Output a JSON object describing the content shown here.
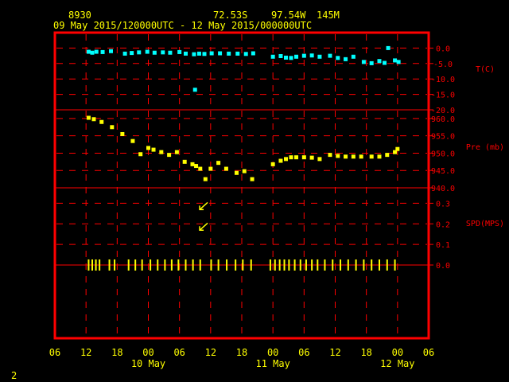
{
  "header": {
    "station_id": "8930",
    "lat": "72.53S",
    "lon": "97.54W",
    "elev": "145M",
    "time_range": "09 May 2015/120000UTC - 12 May 2015/000000UTC"
  },
  "footer": {
    "page_number": "2"
  },
  "colors": {
    "frame": "#ff0000",
    "axis_text": "#ff0000",
    "header_text": "#ffff00",
    "temperature": "#00ffff",
    "pressure": "#ffff00",
    "wind": "#ffff00"
  },
  "x_axis": {
    "tick_labels": [
      "06",
      "12",
      "18",
      "00",
      "06",
      "12",
      "18",
      "00",
      "06",
      "12",
      "18",
      "00",
      "06"
    ],
    "tick_hours": [
      -6,
      0,
      6,
      12,
      18,
      24,
      30,
      36,
      42,
      48,
      54,
      60,
      66
    ],
    "date_labels": [
      {
        "label": "10 May",
        "hour": 12
      },
      {
        "label": "11 May",
        "hour": 36
      },
      {
        "label": "12 May",
        "hour": 60
      }
    ],
    "range_hours": [
      -6,
      66
    ]
  },
  "chart_data": [
    {
      "type": "scatter",
      "ylabel": "T(C)",
      "units": "C",
      "ylim": [
        -20,
        5
      ],
      "tick_values": [
        0,
        -5,
        -10,
        -15,
        -20
      ],
      "tick_labels": [
        "0.0",
        "-5.0",
        "-10.0",
        "-15.0",
        "-20.0"
      ],
      "x_hours_since_start": [
        0.5,
        1.2,
        2,
        3.2,
        4.8,
        7.5,
        8.8,
        10.2,
        11.8,
        13.2,
        14.8,
        16.2,
        18,
        19.2,
        20.8,
        21.8,
        22.8,
        24.2,
        25.8,
        27.5,
        29.2,
        30.8,
        32.2,
        36,
        37.5,
        38.5,
        39.5,
        40.5,
        42,
        43.5,
        45,
        47,
        48.5,
        50,
        51.5,
        53.5,
        55,
        56.5,
        57.5,
        59.5,
        60.2,
        21,
        58.2
      ],
      "y": [
        -1.2,
        -1.5,
        -1.2,
        -1.3,
        -1,
        -1.8,
        -1.6,
        -1.4,
        -1.2,
        -1.5,
        -1.4,
        -1.5,
        -1.3,
        -1.8,
        -2,
        -1.8,
        -1.9,
        -1.7,
        -1.7,
        -1.8,
        -1.8,
        -1.9,
        -1.7,
        -2.8,
        -2.6,
        -3.1,
        -3.2,
        -2.8,
        -2.5,
        -2.4,
        -2.8,
        -2.5,
        -3.2,
        -3.6,
        -2.8,
        -4.5,
        -4.9,
        -4.2,
        -4.8,
        -4,
        -4.5,
        -13.5,
        0
      ],
      "marker": "square"
    },
    {
      "type": "scatter",
      "ylabel": "Pre (mb)",
      "units": "mb",
      "ylim": [
        940,
        962.5
      ],
      "tick_values": [
        960,
        955,
        950,
        945,
        940
      ],
      "tick_labels": [
        "960.0",
        "955.0",
        "950.0",
        "945.0",
        "940.0"
      ],
      "x_hours_since_start": [
        0.5,
        1.5,
        3,
        5,
        7,
        9,
        10.5,
        12,
        13,
        14.5,
        16,
        17.5,
        19,
        20.5,
        21.2,
        22,
        23,
        24,
        25.5,
        27,
        29,
        30.5,
        32,
        36,
        37.5,
        38.5,
        39.5,
        40.5,
        42,
        43.5,
        45,
        47,
        48.5,
        50,
        51.5,
        53,
        55,
        56.5,
        58,
        59.5,
        60
      ],
      "y": [
        960.2,
        959.8,
        959.0,
        957.5,
        955.5,
        953.5,
        949.7,
        951.5,
        951.0,
        950.3,
        949.5,
        950.3,
        947.5,
        946.8,
        946.3,
        945.5,
        942.5,
        945.5,
        947.2,
        945.5,
        944.3,
        944.8,
        942.5,
        946.8,
        947.8,
        948.3,
        948.8,
        948.8,
        948.8,
        948.7,
        948.3,
        949.5,
        949.2,
        949.0,
        949.0,
        949.0,
        949.0,
        949.0,
        949.5,
        950.3,
        951.2
      ],
      "marker": "square"
    },
    {
      "type": "scatter",
      "ylabel": "SPD(MPS)",
      "units": "m/s",
      "ylim": [
        0,
        0.375
      ],
      "tick_values": [
        0.3,
        0.2,
        0.1,
        0
      ],
      "tick_labels": [
        "0.3",
        "0.2",
        "0.1",
        "0.0"
      ],
      "x_hours_since_start": [
        0.5,
        1.2,
        1.9,
        2.6,
        4.5,
        5.5,
        8.2,
        9.5,
        10.8,
        12.4,
        13.8,
        15.2,
        16.5,
        17.8,
        19.2,
        20.6,
        22.0,
        24.1,
        25.5,
        27.1,
        28.8,
        30.2,
        31.8,
        35.5,
        36.4,
        37.3,
        38.2,
        39.1,
        40.2,
        41.3,
        42.4,
        43.5,
        44.6,
        46.0,
        47.5,
        49.0,
        50.5,
        52.0,
        53.5,
        55.0,
        56.5,
        58.0,
        59.5
      ],
      "y": [
        0,
        0,
        0,
        0,
        0,
        0,
        0,
        0,
        0,
        0,
        0,
        0,
        0,
        0,
        0,
        0,
        0,
        0,
        0,
        0,
        0,
        0,
        0,
        0,
        0,
        0,
        0,
        0,
        0,
        0,
        0,
        0,
        0,
        0,
        0,
        0,
        0,
        0,
        0,
        0,
        0,
        0,
        0
      ],
      "marker": "vertical-bar"
    },
    {
      "type": "scatter",
      "ylabel": "SPD(MPS)",
      "units": "m/s",
      "x_hours_since_start": [
        22.5,
        22.5
      ],
      "y": [
        0.3,
        0.2
      ],
      "marker": "wind-arrow",
      "direction": "from-northeast"
    }
  ]
}
